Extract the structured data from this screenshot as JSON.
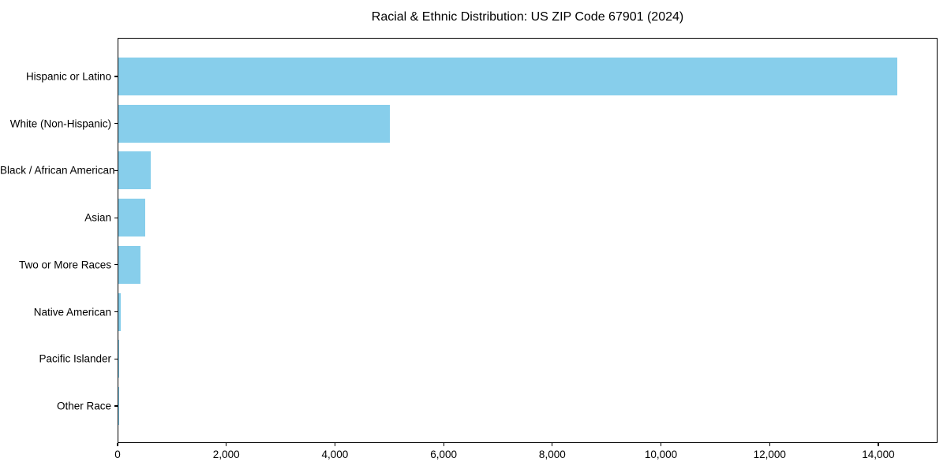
{
  "chart_data": {
    "type": "bar",
    "orientation": "horizontal",
    "title": "Racial & Ethnic Distribution: US ZIP Code 67901 (2024)",
    "categories": [
      "Hispanic or Latino",
      "White (Non-Hispanic)",
      "Black / African American",
      "Asian",
      "Two or More Races",
      "Native American",
      "Pacific Islander",
      "Other Race"
    ],
    "values": [
      14340,
      5000,
      600,
      495,
      410,
      45,
      8,
      3
    ],
    "xlabel": "",
    "ylabel": "",
    "xlim": [
      0,
      15090
    ],
    "x_ticks": [
      0,
      2000,
      4000,
      6000,
      8000,
      10000,
      12000,
      14000
    ],
    "x_tick_labels": [
      "0",
      "2,000",
      "4,000",
      "6,000",
      "8,000",
      "10,000",
      "12,000",
      "14,000"
    ],
    "grid": false,
    "legend": "none",
    "bar_color": "#87CEEB",
    "axis_color": "#000000",
    "text_color": "#000000",
    "background_color": "#FFFFFF"
  }
}
